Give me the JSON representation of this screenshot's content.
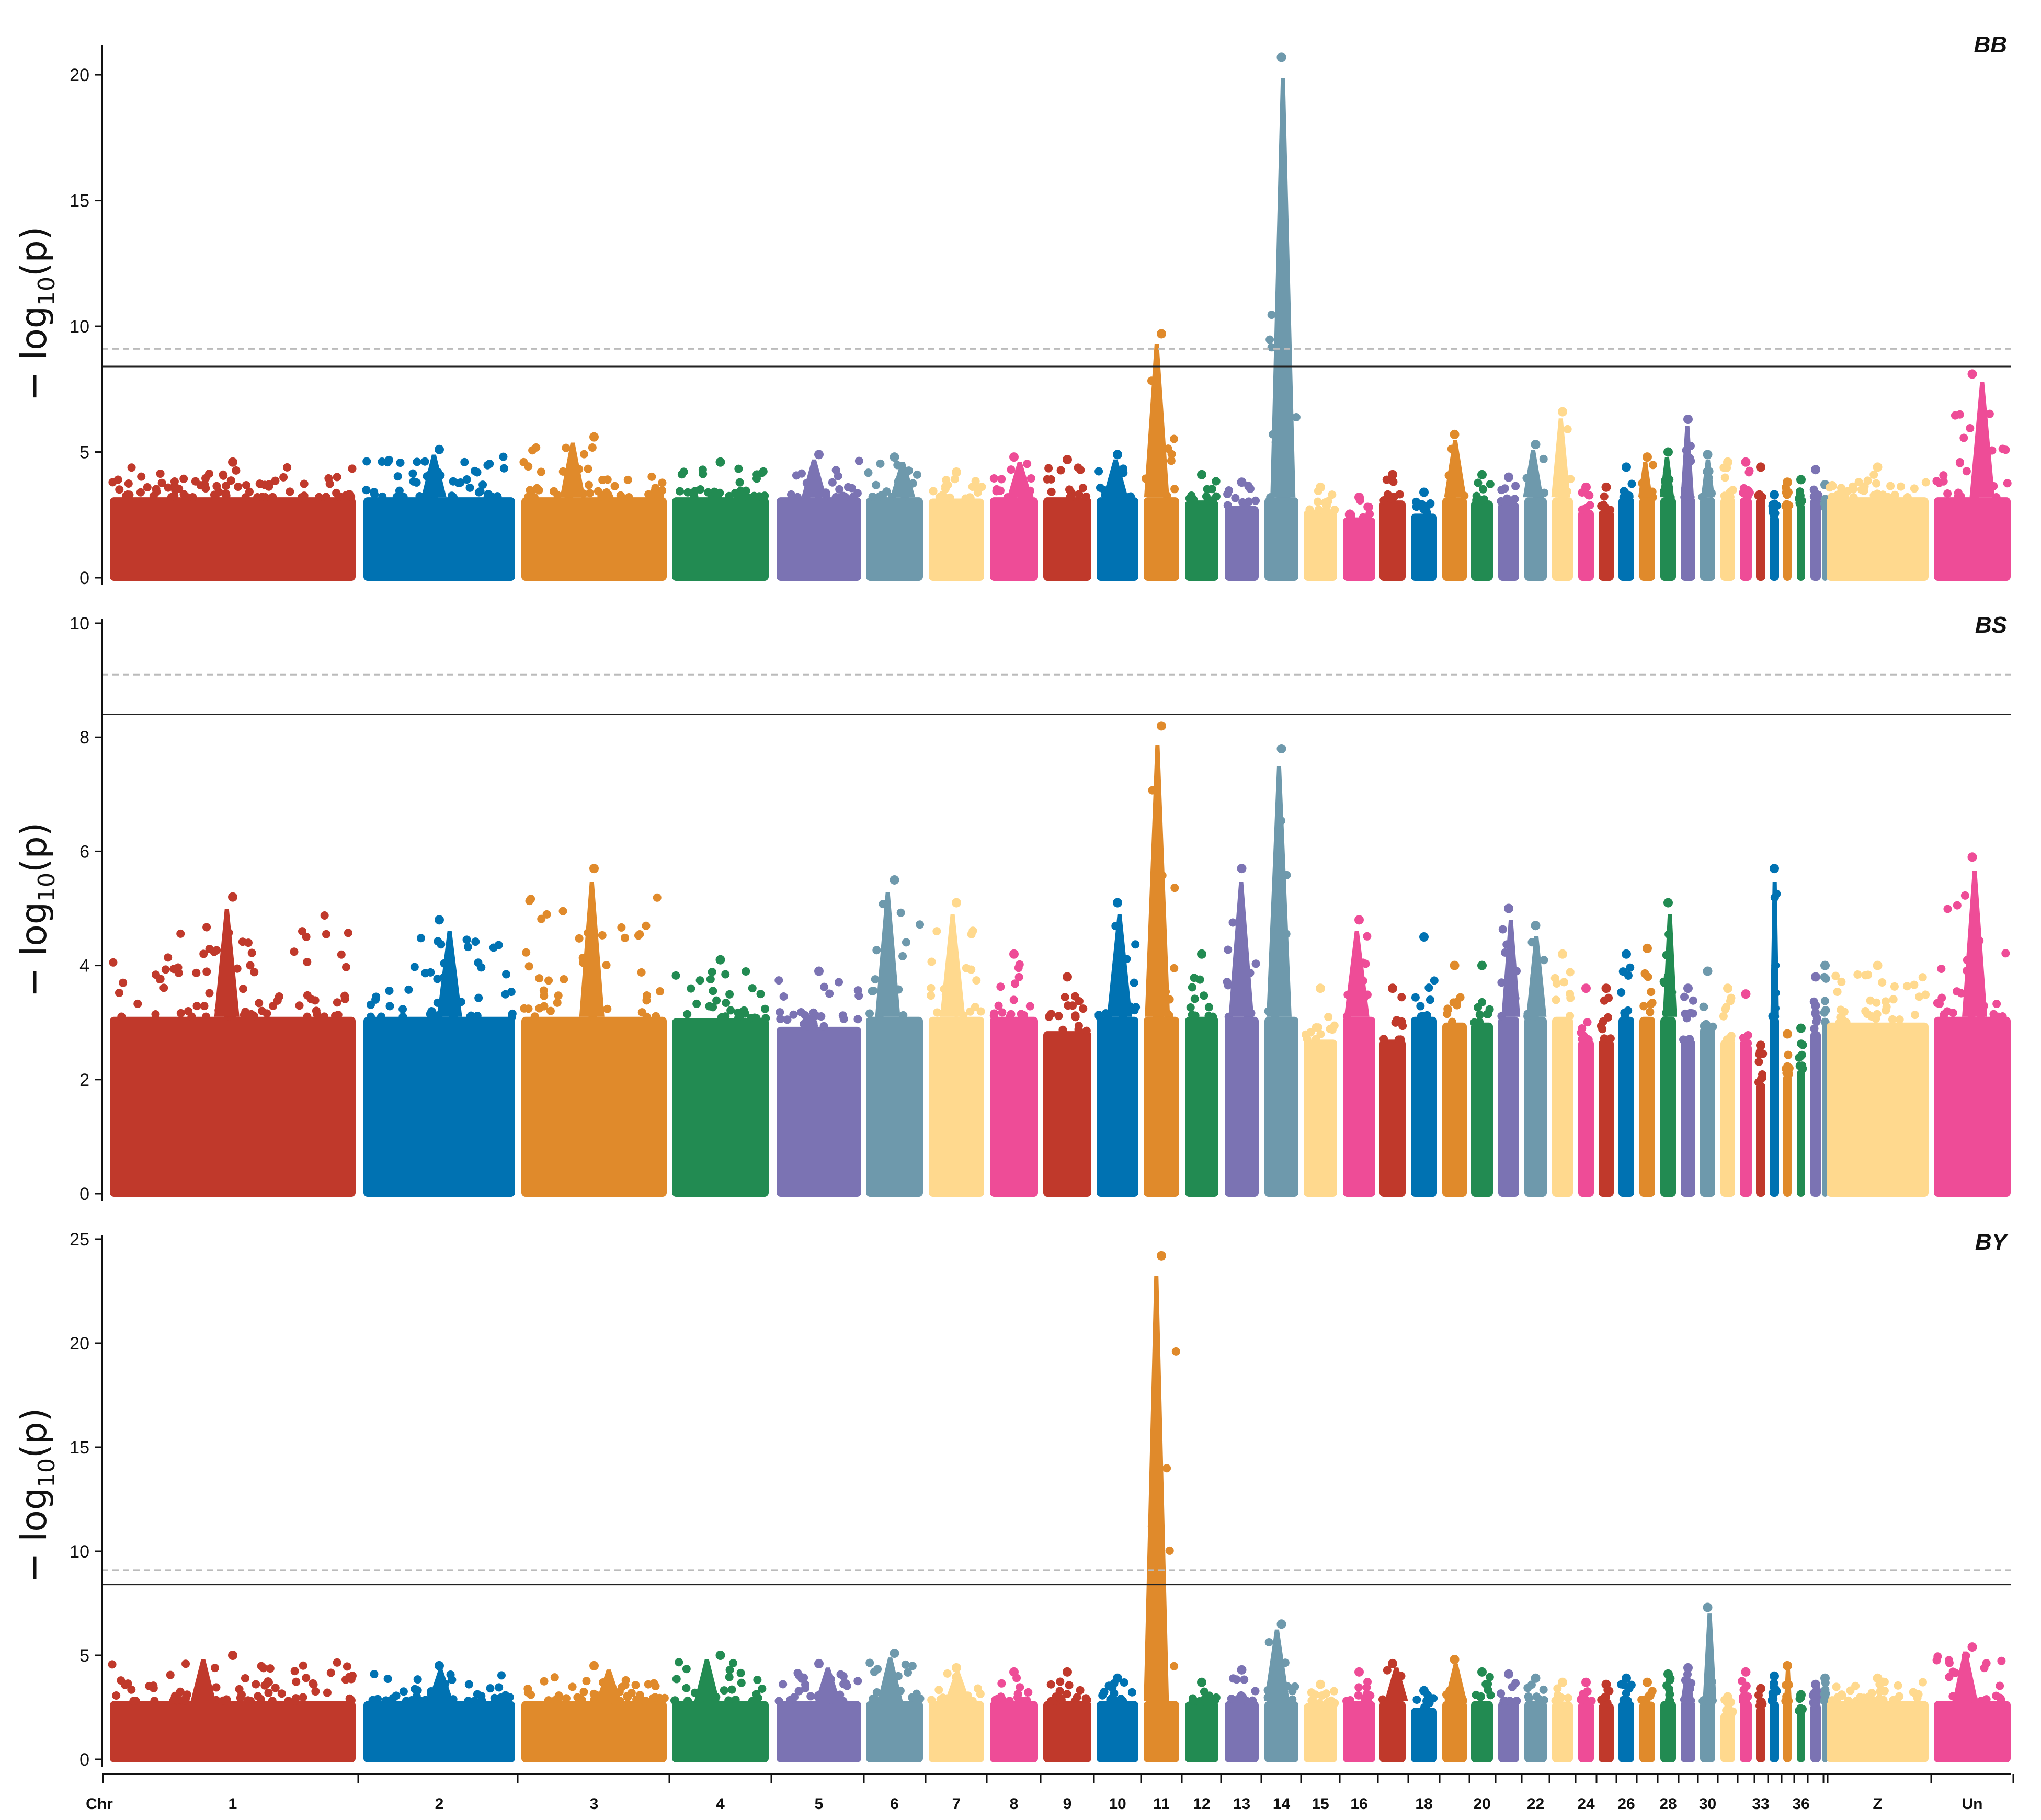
{
  "chart_data": {
    "type": "scatter",
    "subtype": "manhattan",
    "xlabel": "Chr",
    "ylabel_prefix": "− log",
    "ylabel_sub": "10",
    "ylabel_suffix": "(p)",
    "chromosomes": [
      "1",
      "2",
      "3",
      "4",
      "5",
      "6",
      "7",
      "8",
      "9",
      "10",
      "11",
      "12",
      "13",
      "14",
      "15",
      "16",
      "17",
      "18",
      "19",
      "20",
      "21",
      "22",
      "23",
      "24",
      "25",
      "26",
      "27",
      "28",
      "29",
      "30",
      "31",
      "32",
      "33",
      "34",
      "35",
      "36",
      "37",
      "38",
      "Z",
      "Un"
    ],
    "x_tick_labels": [
      "1",
      "2",
      "3",
      "4",
      "5",
      "6",
      "7",
      "8",
      "9",
      "10",
      "11",
      "12",
      "13",
      "14",
      "15",
      "16",
      "18",
      "20",
      "22",
      "24",
      "26",
      "28",
      "30",
      "33",
      "36",
      "Z",
      "Un"
    ],
    "palette": [
      "#C0392B",
      "#0072B2",
      "#E08A2B",
      "#228B52",
      "#7B73B3",
      "#6E99AC",
      "#FFD98E",
      "#EE4C97"
    ],
    "panels": [
      {
        "title": "BB",
        "ylim": [
          0,
          21
        ],
        "yticks": [
          0,
          5,
          10,
          15,
          20
        ],
        "threshold_solid": 8.4,
        "threshold_dashed": 9.1,
        "chromosome_peaks": [
          4.6,
          5.1,
          5.6,
          4.6,
          4.9,
          4.8,
          4.2,
          4.8,
          4.7,
          4.9,
          9.7,
          4.1,
          3.8,
          20.7,
          3.6,
          3.2,
          4.1,
          3.4,
          5.7,
          4.1,
          4.0,
          5.3,
          6.6,
          3.6,
          3.6,
          4.4,
          4.8,
          5.0,
          6.3,
          4.9,
          4.6,
          4.6,
          4.4,
          3.3,
          3.8,
          3.9,
          4.3,
          3.7,
          4.4,
          8.1
        ]
      },
      {
        "title": "BS",
        "ylim": [
          0,
          10
        ],
        "yticks": [
          0,
          2,
          4,
          6,
          8,
          10
        ],
        "threshold_solid": 8.4,
        "threshold_dashed": 9.1,
        "chromosome_peaks": [
          5.2,
          4.8,
          5.7,
          4.1,
          3.9,
          5.5,
          5.1,
          4.2,
          3.8,
          5.1,
          8.2,
          4.2,
          5.7,
          7.8,
          3.6,
          4.8,
          3.6,
          4.5,
          4.0,
          4.0,
          5.0,
          4.7,
          4.2,
          3.6,
          3.6,
          4.2,
          4.3,
          5.1,
          3.6,
          3.9,
          3.6,
          3.5,
          2.6,
          5.7,
          2.8,
          2.9,
          3.8,
          4.0,
          4.0,
          5.9
        ]
      },
      {
        "title": "BY",
        "ylim": [
          0,
          25
        ],
        "yticks": [
          0,
          5,
          10,
          15,
          20,
          25
        ],
        "threshold_solid": 8.4,
        "threshold_dashed": 9.1,
        "chromosome_peaks": [
          5.0,
          4.5,
          4.5,
          5.0,
          4.6,
          5.1,
          4.4,
          4.2,
          4.2,
          3.9,
          24.2,
          3.7,
          4.3,
          6.5,
          3.6,
          4.2,
          4.6,
          3.3,
          4.8,
          4.2,
          4.1,
          3.9,
          3.7,
          3.7,
          3.6,
          3.9,
          3.7,
          4.1,
          4.4,
          7.3,
          3.0,
          4.2,
          3.4,
          4.0,
          4.5,
          3.1,
          3.6,
          3.9,
          3.9,
          5.4
        ]
      }
    ]
  }
}
